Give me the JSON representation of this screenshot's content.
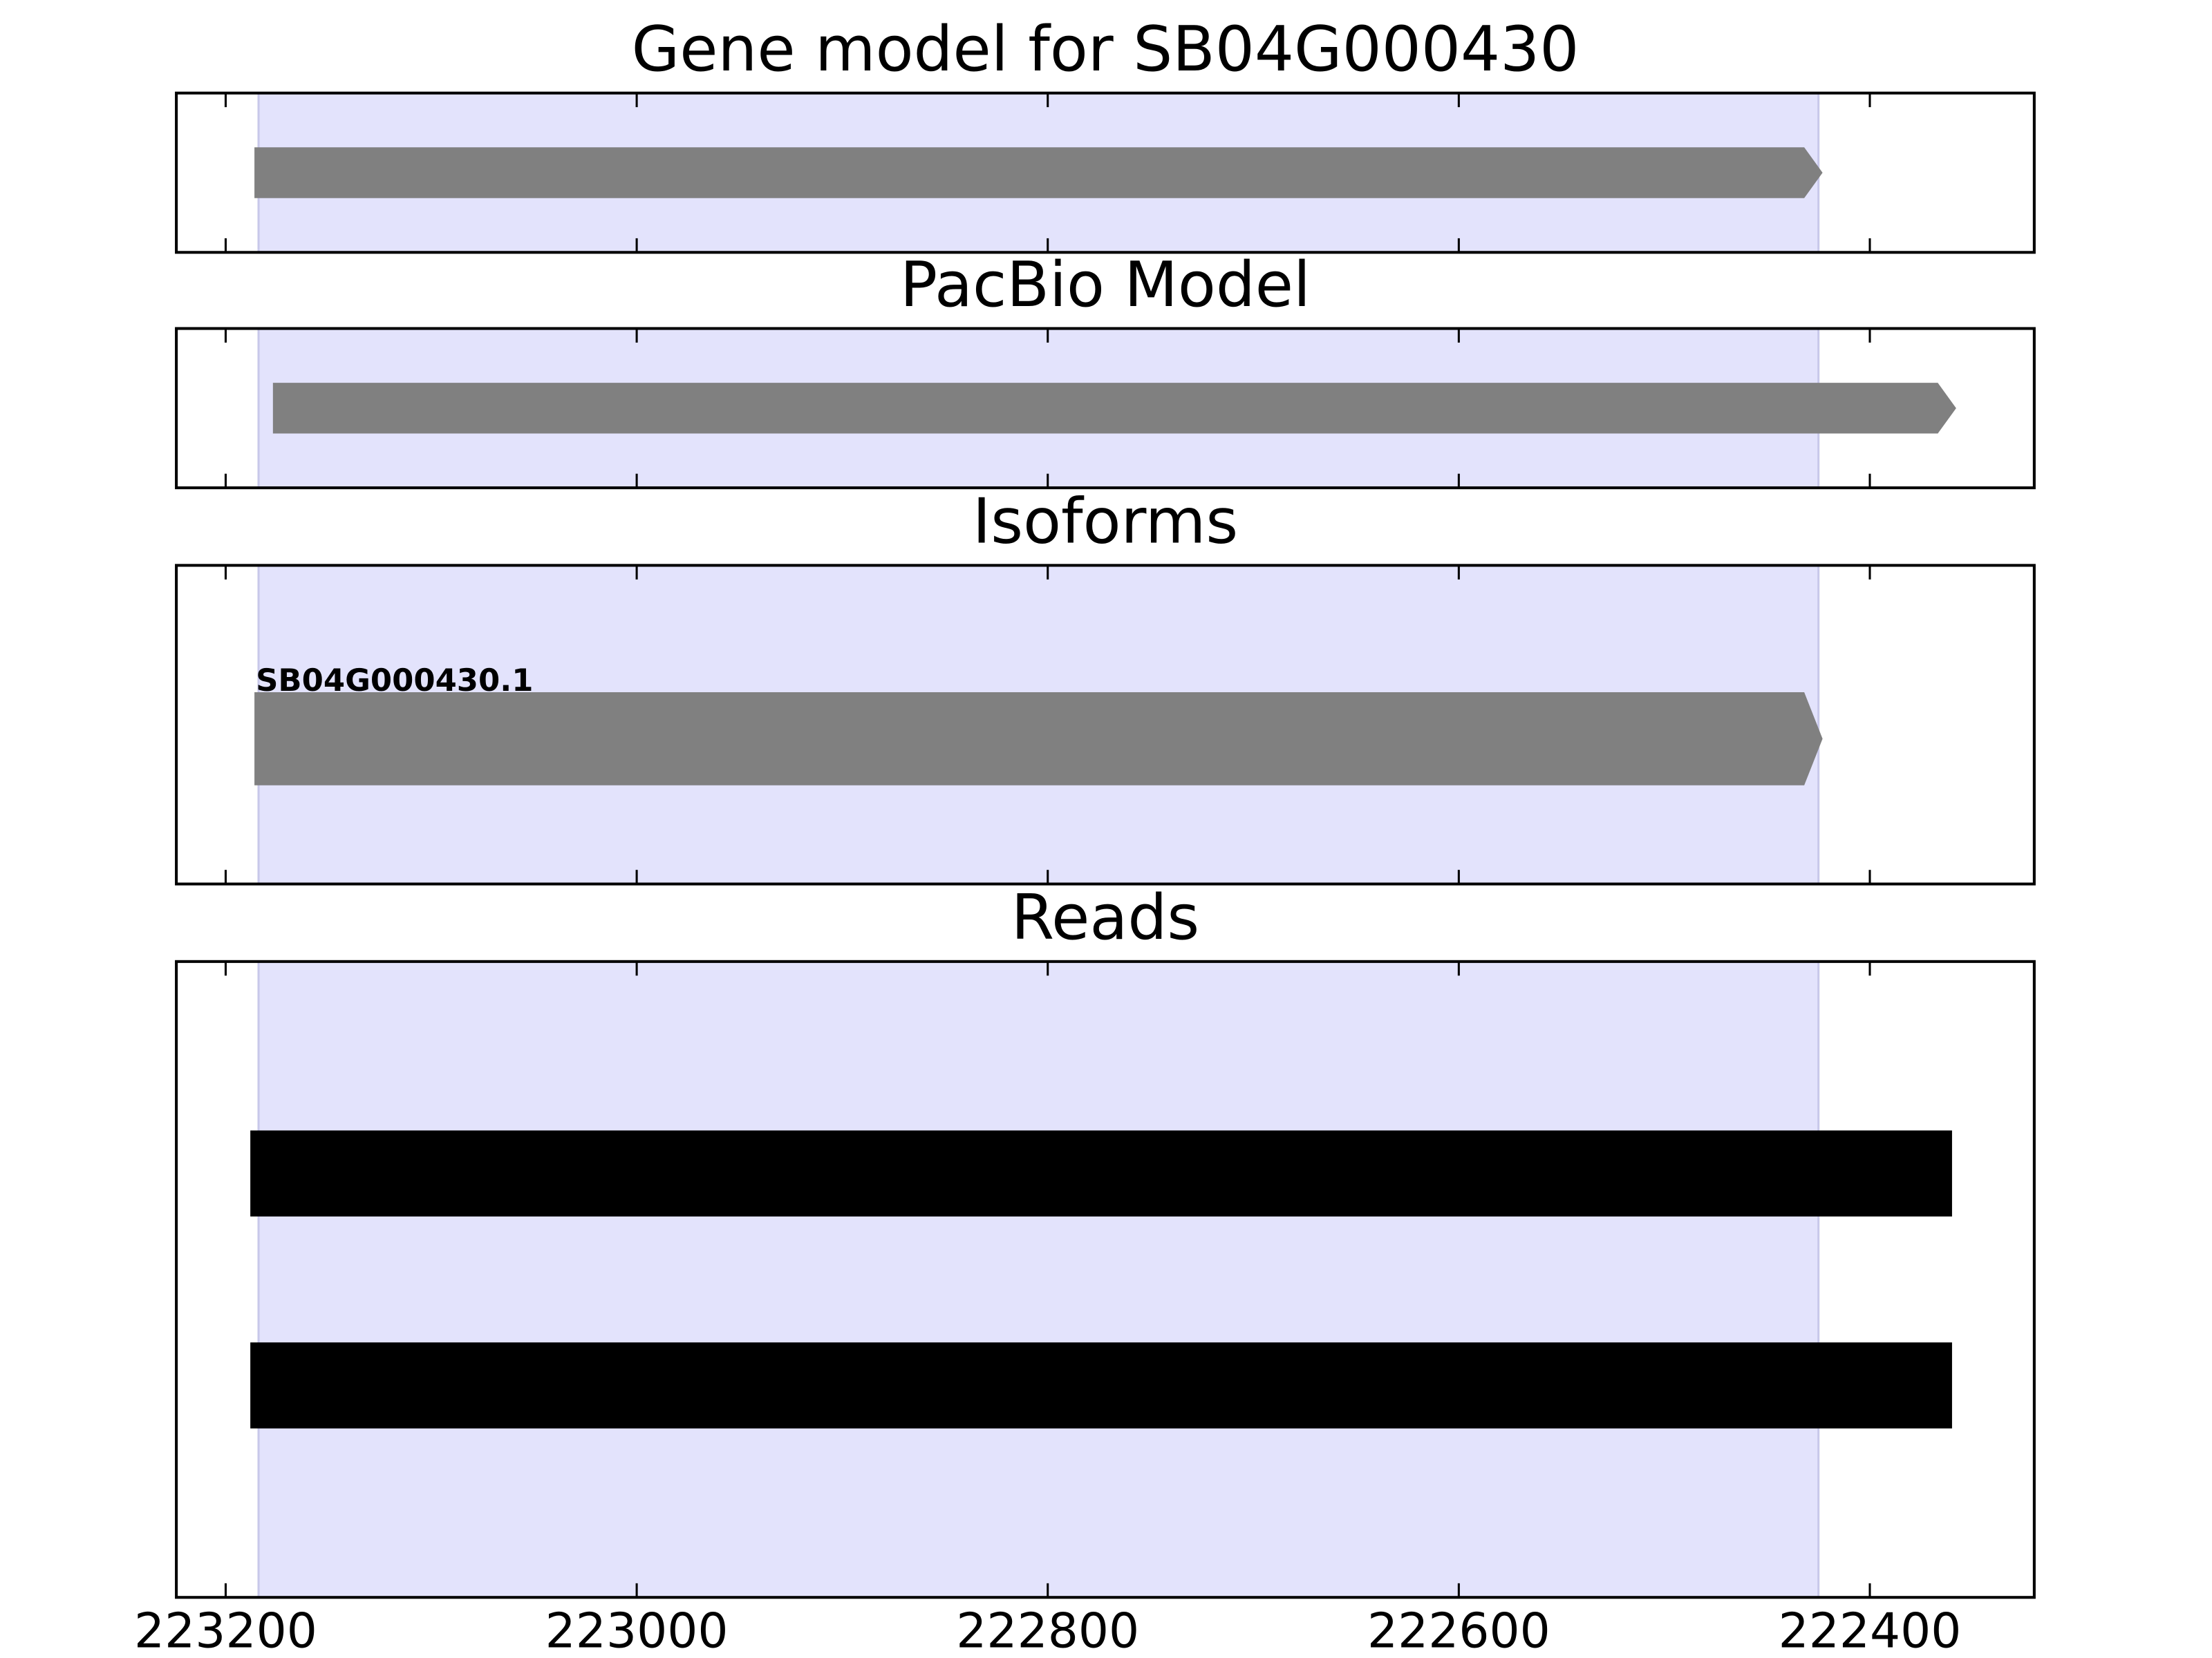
{
  "chart_data": [
    {
      "type": "gene",
      "title": "Gene model for SB04G000430",
      "color": "#808080",
      "highlight": [
        223184,
        222425
      ],
      "highlight_color": "#e3e3fc",
      "xlim": [
        223224,
        222320
      ],
      "xticks": [
        223200,
        223000,
        222800,
        222600,
        222400
      ],
      "features": [
        {
          "start": 223186,
          "end": 222423
        }
      ]
    },
    {
      "type": "gene",
      "title": "PacBio Model",
      "color": "#808080",
      "highlight": [
        223184,
        222425
      ],
      "highlight_color": "#e3e3fc",
      "xlim": [
        223224,
        222320
      ],
      "xticks": [
        223200,
        223000,
        222800,
        222600,
        222400
      ],
      "features": [
        {
          "start": 223177,
          "end": 222358
        }
      ]
    },
    {
      "type": "gene",
      "title": "Isoforms",
      "color": "#808080",
      "highlight": [
        223184,
        222425
      ],
      "highlight_color": "#e3e3fc",
      "xlim": [
        223224,
        222320
      ],
      "xticks": [
        223200,
        223000,
        222800,
        222600,
        222400
      ],
      "features": [
        {
          "name": "SB04G000430.1",
          "start": 223186,
          "end": 222423
        }
      ]
    },
    {
      "type": "reads",
      "title": "Reads",
      "color": "#000000",
      "highlight": [
        223184,
        222425
      ],
      "highlight_color": "#e3e3fc",
      "xlim": [
        223224,
        222320
      ],
      "xticks": [
        223200,
        223000,
        222800,
        222600,
        222400
      ],
      "features": [
        {
          "start": 223188,
          "end": 222360
        },
        {
          "start": 223188,
          "end": 222360
        }
      ]
    }
  ]
}
